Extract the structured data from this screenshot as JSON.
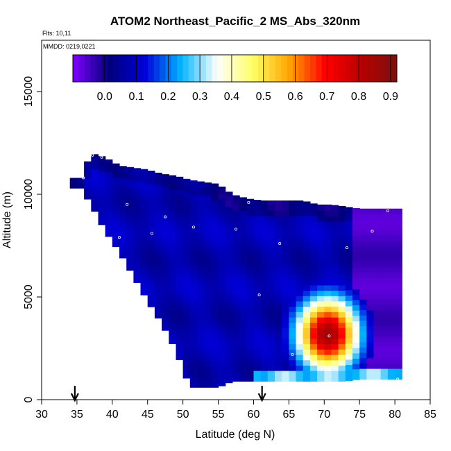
{
  "chart_data": {
    "type": "heatmap",
    "title": "ATOM2 Northeast_Pacific_2 MS_Abs_320nm",
    "flights_label": "Flts: 10,11",
    "dates_label": "MMDD: 0219,0221",
    "xlabel": "Latitude (deg N)",
    "ylabel": "Altitude (m)",
    "xlim": [
      30,
      85
    ],
    "ylim": [
      0,
      17500
    ],
    "xticks": [
      "30",
      "35",
      "40",
      "45",
      "50",
      "55",
      "60",
      "65",
      "70",
      "75",
      "80",
      "85"
    ],
    "yticks": [
      "0",
      "5000",
      "10000",
      "15000"
    ],
    "colorbar": {
      "min": -0.1,
      "max": 0.92,
      "ticks": [
        "0.0",
        "0.1",
        "0.2",
        "0.3",
        "0.4",
        "0.5",
        "0.6",
        "0.7",
        "0.8",
        "0.9"
      ],
      "tick_values": [
        0.0,
        0.1,
        0.2,
        0.3,
        0.4,
        0.5,
        0.6,
        0.7,
        0.8,
        0.9
      ],
      "colors": [
        "#7f00ff",
        "#00007a",
        "#0000d8",
        "#00b4ff",
        "#ffffff",
        "#ffff66",
        "#ffa500",
        "#ff0000",
        "#b80000",
        "#7a1010"
      ]
    },
    "markers_latitude": [
      34.7,
      61.2
    ],
    "flight_profile": [
      {
        "lat": 35.5,
        "bottom": 10300,
        "top": 10800
      },
      {
        "lat": 37.0,
        "bottom": 9500,
        "top": 12000
      },
      {
        "lat": 39.0,
        "bottom": 8200,
        "top": 11800
      },
      {
        "lat": 41.0,
        "bottom": 7200,
        "top": 11400
      },
      {
        "lat": 43.0,
        "bottom": 6000,
        "top": 11300
      },
      {
        "lat": 45.0,
        "bottom": 4800,
        "top": 11200
      },
      {
        "lat": 47.0,
        "bottom": 3700,
        "top": 11000
      },
      {
        "lat": 49.0,
        "bottom": 2400,
        "top": 10900
      },
      {
        "lat": 51.0,
        "bottom": 600,
        "top": 10700
      },
      {
        "lat": 53.0,
        "bottom": 600,
        "top": 10600
      },
      {
        "lat": 55.0,
        "bottom": 600,
        "top": 10500
      },
      {
        "lat": 57.0,
        "bottom": 900,
        "top": 10000
      },
      {
        "lat": 59.0,
        "bottom": 900,
        "top": 9800
      },
      {
        "lat": 61.0,
        "bottom": 900,
        "top": 9700
      },
      {
        "lat": 63.0,
        "bottom": 900,
        "top": 9700
      },
      {
        "lat": 65.0,
        "bottom": 900,
        "top": 9700
      },
      {
        "lat": 67.0,
        "bottom": 900,
        "top": 9700
      },
      {
        "lat": 69.0,
        "bottom": 900,
        "top": 9500
      },
      {
        "lat": 71.0,
        "bottom": 900,
        "top": 9500
      },
      {
        "lat": 73.0,
        "bottom": 900,
        "top": 9400
      },
      {
        "lat": 75.0,
        "bottom": 1000,
        "top": 9300
      },
      {
        "lat": 77.0,
        "bottom": 1000,
        "top": 9300
      },
      {
        "lat": 79.0,
        "bottom": 1000,
        "top": 9300
      },
      {
        "lat": 80.5,
        "bottom": 1000,
        "top": 9300
      }
    ],
    "hotspot": {
      "lat": 70.5,
      "alt": 3200,
      "peak": 0.85
    },
    "sample_points": [
      {
        "lat": 37.2,
        "alt": 11900
      },
      {
        "lat": 38.5,
        "alt": 11800
      },
      {
        "lat": 35.9,
        "alt": 10800
      },
      {
        "lat": 42.1,
        "alt": 9500
      },
      {
        "lat": 47.5,
        "alt": 8900
      },
      {
        "lat": 51.5,
        "alt": 8400
      },
      {
        "lat": 45.6,
        "alt": 8100
      },
      {
        "lat": 41.0,
        "alt": 7900
      },
      {
        "lat": 57.5,
        "alt": 8300
      },
      {
        "lat": 59.3,
        "alt": 9600
      },
      {
        "lat": 67.2,
        "alt": 10100
      },
      {
        "lat": 63.7,
        "alt": 7600
      },
      {
        "lat": 73.2,
        "alt": 7400
      },
      {
        "lat": 76.8,
        "alt": 8200
      },
      {
        "lat": 79.0,
        "alt": 9200
      },
      {
        "lat": 60.8,
        "alt": 5100
      },
      {
        "lat": 70.7,
        "alt": 3100
      },
      {
        "lat": 65.5,
        "alt": 2200
      },
      {
        "lat": 71.3,
        "alt": 1800
      },
      {
        "lat": 49.7,
        "alt": 600
      },
      {
        "lat": 56.2,
        "alt": 600
      },
      {
        "lat": 80.4,
        "alt": 1000
      }
    ]
  }
}
